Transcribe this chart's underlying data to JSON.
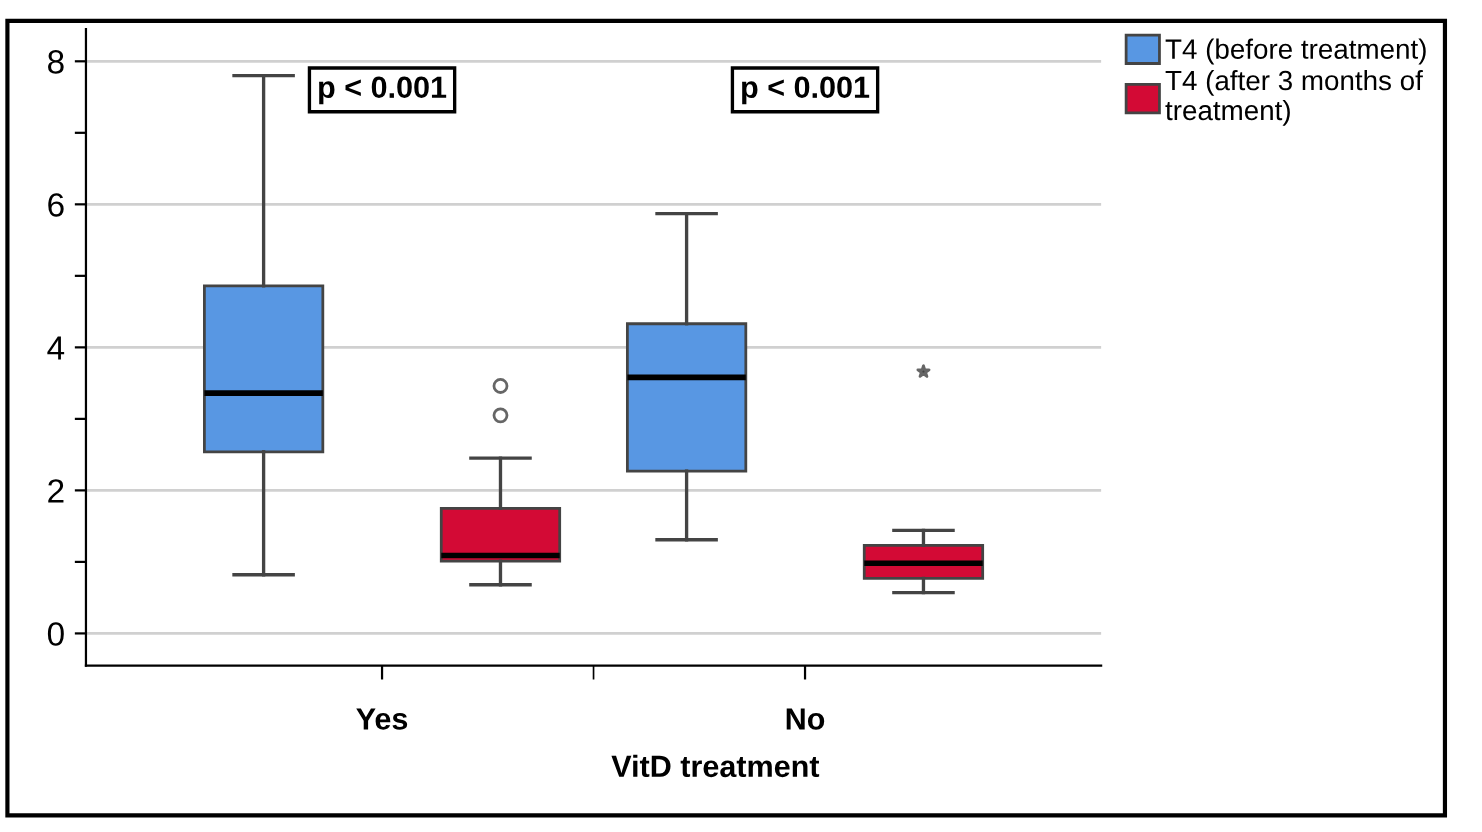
{
  "chart_data": {
    "type": "box",
    "xlabel": "VitD treatment",
    "categories": [
      "Yes",
      "No"
    ],
    "series": [
      {
        "name": "T4 (before treatment)",
        "color": "#5897e3",
        "boxes": [
          {
            "low": 0.82,
            "q1": 2.54,
            "median": 3.36,
            "q3": 4.86,
            "high": 7.8
          },
          {
            "low": 1.31,
            "q1": 2.27,
            "median": 3.58,
            "q3": 4.33,
            "high": 5.87
          }
        ]
      },
      {
        "name": "T4 (after 3 months of\ntreatment)",
        "color": "#d30a35",
        "boxes": [
          {
            "low": 0.68,
            "q1": 1.01,
            "median": 1.09,
            "q3": 1.75,
            "high": 2.45,
            "outliers": [
              3.46,
              3.05
            ]
          },
          {
            "low": 0.57,
            "q1": 0.77,
            "median": 0.98,
            "q3": 1.23,
            "high": 1.44,
            "outliers": [
              3.66
            ]
          }
        ]
      }
    ],
    "annotations": [
      "p < 0.001",
      "p < 0.001"
    ],
    "ylim": [
      -0.45,
      8.45
    ],
    "yticks": [
      0,
      {
        "value": 1,
        "label": null
      },
      2,
      {
        "value": 3,
        "label": null
      },
      4,
      {
        "value": 5,
        "label": null
      },
      6,
      {
        "value": 7,
        "label": null
      },
      8
    ],
    "grid": "y",
    "legend": "top right"
  }
}
